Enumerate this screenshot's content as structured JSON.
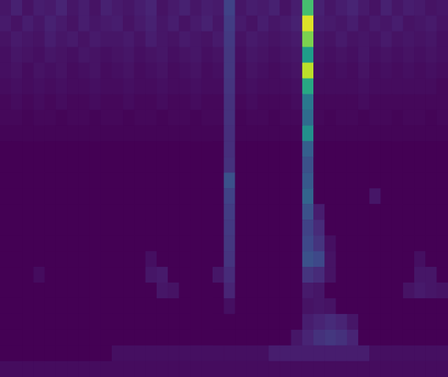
{
  "chart_data": {
    "type": "heatmap",
    "tick_labels": false,
    "zlim": [
      0,
      1
    ],
    "z": [
      [
        0.06,
        0.09,
        0.05,
        0.08,
        0.07,
        0.1,
        0.06,
        0.08,
        0.05,
        0.09,
        0.07,
        0.06,
        0.08,
        0.1,
        0.05,
        0.07,
        0.09,
        0.06,
        0.08,
        0.07,
        0.2,
        0.06,
        0.08,
        0.07,
        0.09,
        0.05,
        0.08,
        0.7,
        0.09,
        0.06,
        0.08,
        0.1,
        0.07,
        0.05,
        0.09,
        0.06,
        0.08,
        0.07,
        0.05,
        0.06
      ],
      [
        0.07,
        0.05,
        0.08,
        0.06,
        0.09,
        0.07,
        0.05,
        0.08,
        0.06,
        0.07,
        0.08,
        0.05,
        0.07,
        0.09,
        0.06,
        0.08,
        0.05,
        0.07,
        0.09,
        0.06,
        0.18,
        0.07,
        0.05,
        0.08,
        0.06,
        0.07,
        0.09,
        0.95,
        0.08,
        0.07,
        0.06,
        0.08,
        0.05,
        0.07,
        0.06,
        0.08,
        0.05,
        0.06,
        0.07,
        0.05
      ],
      [
        0.05,
        0.07,
        0.06,
        0.05,
        0.08,
        0.06,
        0.07,
        0.05,
        0.07,
        0.06,
        0.06,
        0.07,
        0.05,
        0.08,
        0.06,
        0.05,
        0.07,
        0.06,
        0.05,
        0.07,
        0.17,
        0.05,
        0.07,
        0.06,
        0.05,
        0.06,
        0.07,
        0.8,
        0.06,
        0.05,
        0.07,
        0.05,
        0.06,
        0.05,
        0.07,
        0.05,
        0.06,
        0.05,
        0.06,
        0.04
      ],
      [
        0.04,
        0.06,
        0.05,
        0.04,
        0.06,
        0.05,
        0.04,
        0.06,
        0.05,
        0.04,
        0.05,
        0.06,
        0.04,
        0.05,
        0.06,
        0.04,
        0.05,
        0.06,
        0.04,
        0.05,
        0.16,
        0.04,
        0.06,
        0.05,
        0.04,
        0.05,
        0.06,
        0.55,
        0.05,
        0.04,
        0.05,
        0.04,
        0.06,
        0.04,
        0.05,
        0.04,
        0.05,
        0.04,
        0.05,
        0.04
      ],
      [
        0.04,
        0.05,
        0.03,
        0.05,
        0.04,
        0.05,
        0.03,
        0.04,
        0.05,
        0.03,
        0.04,
        0.05,
        0.03,
        0.04,
        0.05,
        0.03,
        0.04,
        0.05,
        0.03,
        0.04,
        0.16,
        0.03,
        0.05,
        0.04,
        0.03,
        0.04,
        0.05,
        0.9,
        0.04,
        0.03,
        0.04,
        0.03,
        0.05,
        0.03,
        0.04,
        0.03,
        0.04,
        0.03,
        0.04,
        0.03
      ],
      [
        0.03,
        0.04,
        0.03,
        0.04,
        0.03,
        0.04,
        0.03,
        0.03,
        0.04,
        0.03,
        0.03,
        0.04,
        0.03,
        0.03,
        0.04,
        0.03,
        0.03,
        0.04,
        0.03,
        0.03,
        0.15,
        0.03,
        0.04,
        0.03,
        0.03,
        0.03,
        0.04,
        0.6,
        0.03,
        0.03,
        0.03,
        0.03,
        0.04,
        0.03,
        0.03,
        0.03,
        0.03,
        0.03,
        0.03,
        0.02
      ],
      [
        0.02,
        0.03,
        0.02,
        0.03,
        0.02,
        0.03,
        0.02,
        0.02,
        0.03,
        0.02,
        0.02,
        0.03,
        0.02,
        0.02,
        0.03,
        0.02,
        0.02,
        0.03,
        0.02,
        0.02,
        0.14,
        0.02,
        0.03,
        0.02,
        0.02,
        0.02,
        0.03,
        0.4,
        0.02,
        0.02,
        0.02,
        0.02,
        0.03,
        0.02,
        0.02,
        0.02,
        0.02,
        0.02,
        0.02,
        0.02
      ],
      [
        0.02,
        0.02,
        0.01,
        0.02,
        0.02,
        0.01,
        0.02,
        0.02,
        0.01,
        0.02,
        0.02,
        0.01,
        0.02,
        0.02,
        0.01,
        0.02,
        0.02,
        0.01,
        0.02,
        0.02,
        0.14,
        0.01,
        0.02,
        0.02,
        0.01,
        0.02,
        0.02,
        0.35,
        0.02,
        0.01,
        0.02,
        0.02,
        0.01,
        0.02,
        0.02,
        0.01,
        0.02,
        0.02,
        0.01,
        0.02
      ],
      [
        0.01,
        0.01,
        0.01,
        0.01,
        0.01,
        0.01,
        0.01,
        0.01,
        0.01,
        0.01,
        0.01,
        0.01,
        0.01,
        0.01,
        0.01,
        0.01,
        0.01,
        0.01,
        0.01,
        0.01,
        0.13,
        0.01,
        0.01,
        0.01,
        0.01,
        0.01,
        0.01,
        0.5,
        0.01,
        0.01,
        0.01,
        0.01,
        0.01,
        0.01,
        0.01,
        0.01,
        0.01,
        0.01,
        0.01,
        0.01
      ],
      [
        0,
        0,
        0,
        0,
        0,
        0,
        0,
        0,
        0,
        0,
        0,
        0,
        0,
        0,
        0,
        0,
        0,
        0,
        0,
        0,
        0.13,
        0,
        0,
        0,
        0,
        0,
        0,
        0.3,
        0,
        0,
        0,
        0,
        0,
        0,
        0,
        0,
        0,
        0,
        0,
        0
      ],
      [
        0,
        0,
        0,
        0,
        0,
        0,
        0,
        0,
        0,
        0,
        0,
        0,
        0,
        0,
        0,
        0,
        0,
        0,
        0,
        0,
        0.14,
        0,
        0,
        0,
        0,
        0,
        0,
        0.25,
        0,
        0,
        0,
        0,
        0,
        0,
        0,
        0,
        0,
        0,
        0,
        0
      ],
      [
        0,
        0,
        0,
        0,
        0,
        0,
        0,
        0,
        0,
        0,
        0,
        0,
        0,
        0,
        0,
        0,
        0,
        0,
        0,
        0,
        0.25,
        0,
        0,
        0,
        0,
        0,
        0,
        0.28,
        0,
        0,
        0,
        0,
        0,
        0,
        0,
        0,
        0,
        0,
        0,
        0
      ],
      [
        0,
        0,
        0,
        0,
        0,
        0,
        0,
        0,
        0,
        0,
        0,
        0,
        0,
        0,
        0,
        0,
        0,
        0,
        0,
        0,
        0.2,
        0,
        0,
        0,
        0,
        0,
        0,
        0.32,
        0,
        0,
        0,
        0,
        0,
        0.06,
        0,
        0,
        0,
        0,
        0,
        0
      ],
      [
        0,
        0,
        0,
        0,
        0,
        0,
        0,
        0,
        0,
        0,
        0,
        0,
        0,
        0,
        0,
        0,
        0,
        0,
        0,
        0,
        0.18,
        0,
        0,
        0,
        0,
        0,
        0,
        0.25,
        0.08,
        0,
        0,
        0,
        0,
        0,
        0,
        0,
        0,
        0,
        0,
        0
      ],
      [
        0,
        0,
        0,
        0,
        0,
        0,
        0,
        0,
        0,
        0,
        0,
        0,
        0,
        0,
        0,
        0,
        0,
        0,
        0,
        0,
        0.17,
        0,
        0,
        0,
        0,
        0,
        0,
        0.2,
        0.12,
        0,
        0,
        0,
        0,
        0,
        0,
        0,
        0,
        0,
        0,
        0
      ],
      [
        0,
        0,
        0,
        0,
        0,
        0,
        0,
        0,
        0,
        0,
        0,
        0,
        0,
        0,
        0,
        0,
        0,
        0,
        0,
        0,
        0.16,
        0,
        0,
        0,
        0,
        0,
        0,
        0.22,
        0.15,
        0.04,
        0,
        0,
        0,
        0,
        0,
        0,
        0,
        0,
        0,
        0
      ],
      [
        0,
        0,
        0,
        0,
        0,
        0,
        0,
        0,
        0,
        0,
        0,
        0,
        0,
        0.04,
        0,
        0,
        0,
        0,
        0,
        0,
        0.15,
        0,
        0,
        0,
        0,
        0,
        0,
        0.25,
        0.22,
        0.05,
        0,
        0,
        0,
        0,
        0,
        0,
        0,
        0.04,
        0,
        0
      ],
      [
        0,
        0,
        0,
        0.03,
        0,
        0,
        0,
        0,
        0,
        0,
        0,
        0,
        0,
        0.06,
        0.07,
        0,
        0,
        0,
        0,
        0.06,
        0.12,
        0,
        0,
        0,
        0,
        0,
        0,
        0.15,
        0.12,
        0.05,
        0,
        0,
        0,
        0,
        0,
        0,
        0,
        0.06,
        0.06,
        0
      ],
      [
        0,
        0,
        0,
        0,
        0,
        0,
        0,
        0,
        0,
        0,
        0,
        0,
        0,
        0,
        0.06,
        0.05,
        0,
        0,
        0,
        0,
        0.1,
        0,
        0,
        0,
        0,
        0,
        0,
        0.07,
        0.06,
        0,
        0,
        0,
        0,
        0,
        0,
        0,
        0.05,
        0.07,
        0.06,
        0.05
      ],
      [
        0,
        0,
        0,
        0,
        0,
        0,
        0,
        0,
        0,
        0,
        0,
        0,
        0,
        0,
        0,
        0,
        0,
        0,
        0,
        0,
        0.04,
        0,
        0,
        0,
        0,
        0,
        0,
        0.05,
        0.06,
        0.05,
        0,
        0,
        0,
        0,
        0,
        0,
        0,
        0,
        0,
        0
      ],
      [
        0,
        0,
        0,
        0,
        0,
        0,
        0,
        0,
        0,
        0,
        0,
        0,
        0,
        0,
        0,
        0,
        0,
        0,
        0,
        0,
        0,
        0,
        0,
        0,
        0,
        0,
        0,
        0.08,
        0.1,
        0.12,
        0.1,
        0.06,
        0,
        0,
        0,
        0,
        0,
        0,
        0,
        0
      ],
      [
        0,
        0,
        0,
        0,
        0,
        0,
        0,
        0,
        0,
        0,
        0,
        0,
        0,
        0,
        0,
        0,
        0,
        0,
        0,
        0,
        0,
        0,
        0,
        0,
        0,
        0,
        0.06,
        0.1,
        0.14,
        0.16,
        0.14,
        0.1,
        0,
        0,
        0,
        0,
        0,
        0,
        0,
        0
      ],
      [
        0,
        0,
        0,
        0,
        0,
        0,
        0,
        0,
        0,
        0,
        0.04,
        0.04,
        0.04,
        0.04,
        0.04,
        0.04,
        0.04,
        0.04,
        0.04,
        0.04,
        0.04,
        0.04,
        0.04,
        0.04,
        0.08,
        0.08,
        0.08,
        0.08,
        0.08,
        0.08,
        0.08,
        0.08,
        0.08,
        0.04,
        0.04,
        0.04,
        0.04,
        0.04,
        0.04,
        0.04
      ],
      [
        0.03,
        0.03,
        0.03,
        0.03,
        0.03,
        0.03,
        0.03,
        0.03,
        0.03,
        0.03,
        0.03,
        0.03,
        0.03,
        0.03,
        0.03,
        0.03,
        0.03,
        0.03,
        0.03,
        0.03,
        0.03,
        0.03,
        0.03,
        0.03,
        0.03,
        0.03,
        0.03,
        0.03,
        0.03,
        0.03,
        0.03,
        0.03,
        0.03,
        0.03,
        0.03,
        0.03,
        0.03,
        0.03,
        0.03,
        0.03
      ]
    ]
  }
}
